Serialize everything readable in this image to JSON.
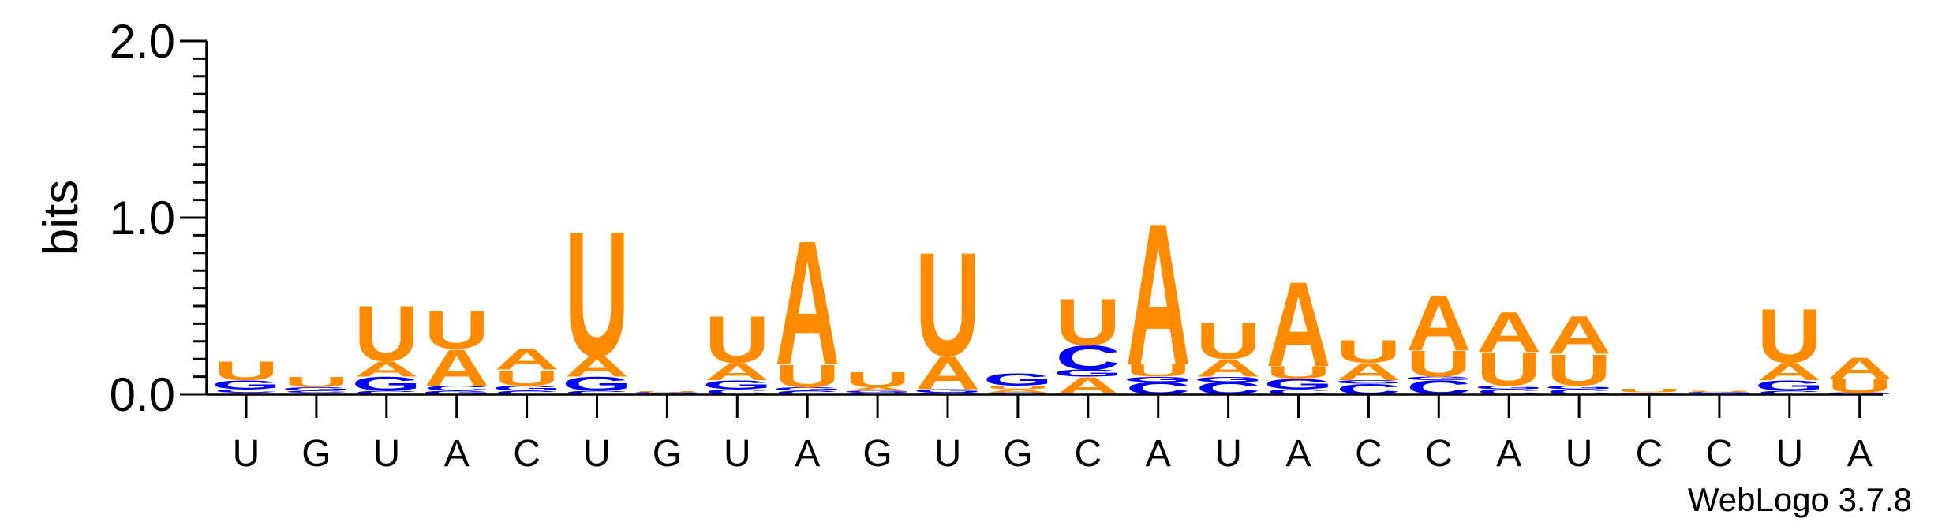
{
  "chart_data": {
    "type": "sequence-logo",
    "ylabel": "bits",
    "ylim": [
      0,
      2
    ],
    "yticks": [
      "0.0",
      "1.0",
      "2.0"
    ],
    "positions": [
      "U",
      "G",
      "U",
      "A",
      "C",
      "U",
      "G",
      "U",
      "A",
      "G",
      "U",
      "G",
      "C",
      "A",
      "U",
      "A",
      "C",
      "C",
      "A",
      "U",
      "C",
      "C",
      "U",
      "A"
    ],
    "colors": {
      "A": "#ff8c00",
      "U": "#ff8c00",
      "G": "#0000ff",
      "C": "#0000ff"
    },
    "stacks": [
      [
        {
          "letter": "A",
          "bits": 0.01
        },
        {
          "letter": "C",
          "bits": 0.02
        },
        {
          "letter": "G",
          "bits": 0.05
        },
        {
          "letter": "U",
          "bits": 0.11
        }
      ],
      [
        {
          "letter": "A",
          "bits": 0.01
        },
        {
          "letter": "C",
          "bits": 0.01
        },
        {
          "letter": "G",
          "bits": 0.02
        },
        {
          "letter": "U",
          "bits": 0.06
        }
      ],
      [
        {
          "letter": "C",
          "bits": 0.02
        },
        {
          "letter": "G",
          "bits": 0.08
        },
        {
          "letter": "A",
          "bits": 0.09
        },
        {
          "letter": "U",
          "bits": 0.32
        }
      ],
      [
        {
          "letter": "G",
          "bits": 0.02
        },
        {
          "letter": "C",
          "bits": 0.03
        },
        {
          "letter": "A",
          "bits": 0.21
        },
        {
          "letter": "U",
          "bits": 0.22
        }
      ],
      [
        {
          "letter": "C",
          "bits": 0.02
        },
        {
          "letter": "G",
          "bits": 0.03
        },
        {
          "letter": "U",
          "bits": 0.09
        },
        {
          "letter": "A",
          "bits": 0.12
        }
      ],
      [
        {
          "letter": "C",
          "bits": 0.02
        },
        {
          "letter": "G",
          "bits": 0.08
        },
        {
          "letter": "A",
          "bits": 0.12
        },
        {
          "letter": "U",
          "bits": 0.72
        }
      ],
      [
        {
          "letter": "A",
          "bits": 0.003
        },
        {
          "letter": "C",
          "bits": 0.003
        },
        {
          "letter": "G",
          "bits": 0.005
        },
        {
          "letter": "U",
          "bits": 0.005
        }
      ],
      [
        {
          "letter": "C",
          "bits": 0.03
        },
        {
          "letter": "G",
          "bits": 0.05
        },
        {
          "letter": "A",
          "bits": 0.1
        },
        {
          "letter": "U",
          "bits": 0.27
        }
      ],
      [
        {
          "letter": "C",
          "bits": 0.02
        },
        {
          "letter": "G",
          "bits": 0.02
        },
        {
          "letter": "U",
          "bits": 0.13
        },
        {
          "letter": "A",
          "bits": 0.72
        }
      ],
      [
        {
          "letter": "C",
          "bits": 0.01
        },
        {
          "letter": "G",
          "bits": 0.01
        },
        {
          "letter": "A",
          "bits": 0.02
        },
        {
          "letter": "U",
          "bits": 0.09
        }
      ],
      [
        {
          "letter": "C",
          "bits": 0.01
        },
        {
          "letter": "G",
          "bits": 0.02
        },
        {
          "letter": "A",
          "bits": 0.19
        },
        {
          "letter": "U",
          "bits": 0.6
        }
      ],
      [
        {
          "letter": "C",
          "bits": 0.01
        },
        {
          "letter": "A",
          "bits": 0.02
        },
        {
          "letter": "U",
          "bits": 0.02
        },
        {
          "letter": "G",
          "bits": 0.07
        }
      ],
      [
        {
          "letter": "A",
          "bits": 0.1
        },
        {
          "letter": "G",
          "bits": 0.04
        },
        {
          "letter": "C",
          "bits": 0.14
        },
        {
          "letter": "U",
          "bits": 0.27
        }
      ],
      [
        {
          "letter": "C",
          "bits": 0.07
        },
        {
          "letter": "G",
          "bits": 0.03
        },
        {
          "letter": "U",
          "bits": 0.07
        },
        {
          "letter": "A",
          "bits": 0.82
        }
      ],
      [
        {
          "letter": "C",
          "bits": 0.07
        },
        {
          "letter": "G",
          "bits": 0.03
        },
        {
          "letter": "A",
          "bits": 0.1
        },
        {
          "letter": "U",
          "bits": 0.21
        }
      ],
      [
        {
          "letter": "C",
          "bits": 0.03
        },
        {
          "letter": "G",
          "bits": 0.06
        },
        {
          "letter": "U",
          "bits": 0.07
        },
        {
          "letter": "A",
          "bits": 0.49
        }
      ],
      [
        {
          "letter": "C",
          "bits": 0.06
        },
        {
          "letter": "G",
          "bits": 0.02
        },
        {
          "letter": "A",
          "bits": 0.1
        },
        {
          "letter": "U",
          "bits": 0.13
        }
      ],
      [
        {
          "letter": "C",
          "bits": 0.08
        },
        {
          "letter": "G",
          "bits": 0.02
        },
        {
          "letter": "U",
          "bits": 0.15
        },
        {
          "letter": "A",
          "bits": 0.32
        }
      ],
      [
        {
          "letter": "C",
          "bits": 0.03
        },
        {
          "letter": "G",
          "bits": 0.02
        },
        {
          "letter": "U",
          "bits": 0.19
        },
        {
          "letter": "A",
          "bits": 0.23
        }
      ],
      [
        {
          "letter": "C",
          "bits": 0.03
        },
        {
          "letter": "G",
          "bits": 0.02
        },
        {
          "letter": "U",
          "bits": 0.18
        },
        {
          "letter": "A",
          "bits": 0.22
        }
      ],
      [
        {
          "letter": "A",
          "bits": 0.003
        },
        {
          "letter": "C",
          "bits": 0.004
        },
        {
          "letter": "G",
          "bits": 0.004
        },
        {
          "letter": "U",
          "bits": 0.02
        }
      ],
      [
        {
          "letter": "A",
          "bits": 0.003
        },
        {
          "letter": "C",
          "bits": 0.004
        },
        {
          "letter": "G",
          "bits": 0.006
        },
        {
          "letter": "U",
          "bits": 0.005
        }
      ],
      [
        {
          "letter": "C",
          "bits": 0.02
        },
        {
          "letter": "G",
          "bits": 0.06
        },
        {
          "letter": "A",
          "bits": 0.1
        },
        {
          "letter": "U",
          "bits": 0.31
        }
      ],
      [
        {
          "letter": "C",
          "bits": 0.004
        },
        {
          "letter": "G",
          "bits": 0.006
        },
        {
          "letter": "U",
          "bits": 0.08
        },
        {
          "letter": "A",
          "bits": 0.12
        }
      ]
    ],
    "credit": "WebLogo 3.7.8"
  }
}
